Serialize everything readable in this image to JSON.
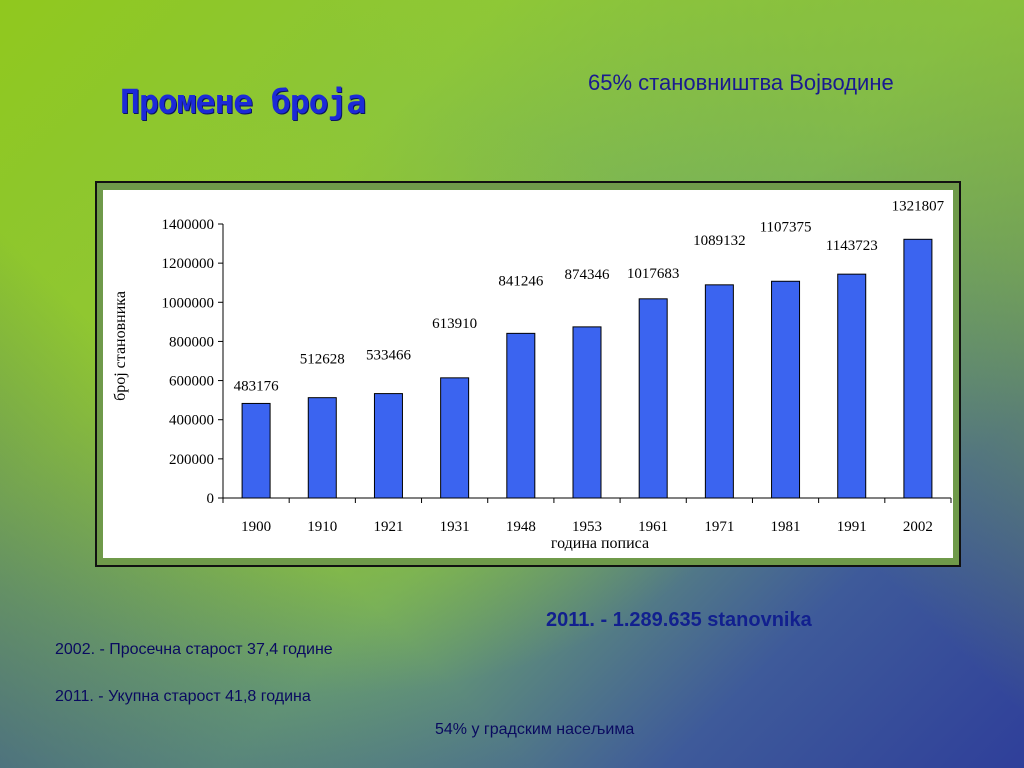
{
  "slide": {
    "title": "Промене броја",
    "subtitle": "65% становништва Војводине",
    "note_2011_total": "2011.  - 1.289.635 stanovnika",
    "note_2002_age": "2002. - Просечна старост 37,4 године",
    "note_2011_age": "2011. -   Укупна старост 41,8 година",
    "note_urban": "54% у градским насељима"
  },
  "chart_data": {
    "type": "bar",
    "categories": [
      "1900",
      "1910",
      "1921",
      "1931",
      "1948",
      "1953",
      "1961",
      "1971",
      "1981",
      "1991",
      "2002"
    ],
    "values": [
      483176,
      512628,
      533466,
      613910,
      841246,
      874346,
      1017683,
      1089132,
      1107375,
      1143723,
      1321807
    ],
    "xlabel": "година пописа",
    "ylabel": "број становника",
    "ylim": [
      0,
      1400000
    ],
    "yticks": [
      0,
      200000,
      400000,
      600000,
      800000,
      1000000,
      1200000,
      1400000
    ],
    "grid": false,
    "legend": "none",
    "bar_color": "#3b64f0"
  }
}
